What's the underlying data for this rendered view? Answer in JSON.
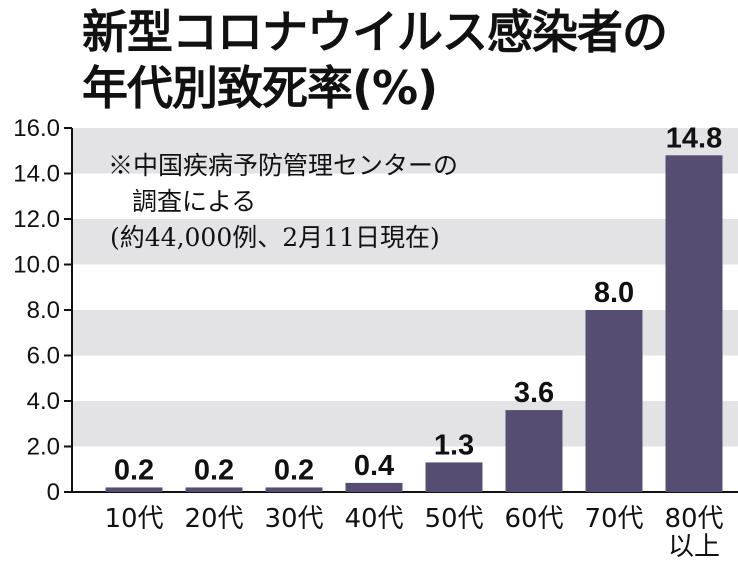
{
  "chart_data": {
    "type": "bar",
    "title_lines": [
      "新型コロナウイルス感染者の",
      "年代別致死率(%)"
    ],
    "note_lines": [
      "※中国疾病予防管理センターの",
      "調査による",
      "(約44,000例、2月11日現在)"
    ],
    "categories": [
      [
        "10代"
      ],
      [
        "20代"
      ],
      [
        "30代"
      ],
      [
        "40代"
      ],
      [
        "50代"
      ],
      [
        "60代"
      ],
      [
        "70代"
      ],
      [
        "80代",
        "以上"
      ]
    ],
    "values": [
      0.2,
      0.2,
      0.2,
      0.4,
      1.3,
      3.6,
      8.0,
      14.8
    ],
    "value_labels": [
      "0.2",
      "0.2",
      "0.2",
      "0.4",
      "1.3",
      "3.6",
      "8.0",
      "14.8"
    ],
    "yticks": [
      "0",
      "2.0",
      "4.0",
      "6.0",
      "8.0",
      "10.0",
      "12.0",
      "14.0",
      "16.0"
    ],
    "ylim": [
      0,
      16
    ],
    "bar_color": "#574d72",
    "band_color": "#e3e3e6"
  }
}
